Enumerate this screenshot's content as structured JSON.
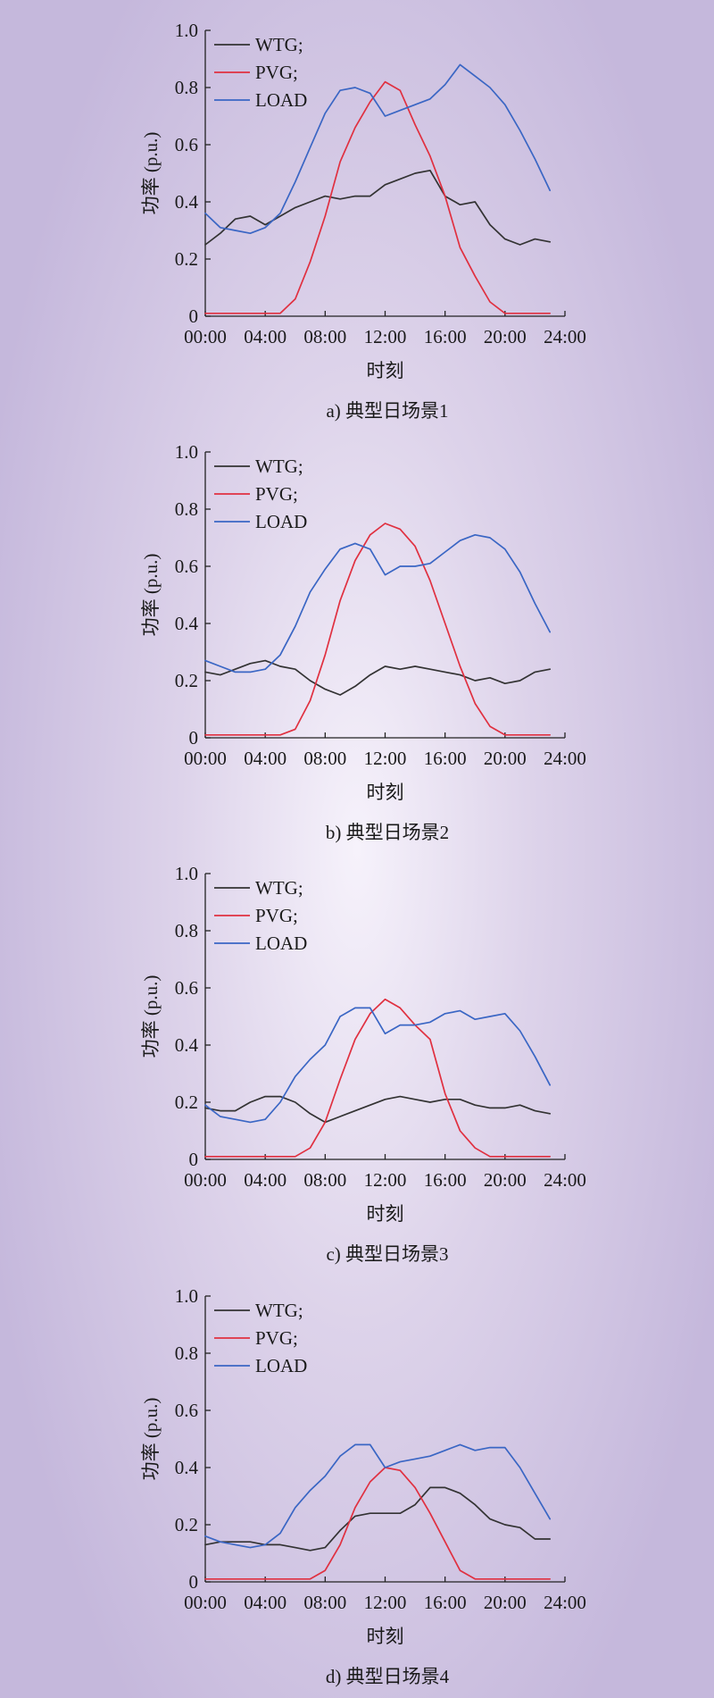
{
  "chart_data": [
    {
      "type": "line",
      "caption": "a) 典型日场景1",
      "xlabel": "时刻",
      "ylabel": "功率 (p.u.)",
      "ylim": [
        0,
        1.0
      ],
      "xlim": [
        0,
        24
      ],
      "x_ticks": [
        "00:00",
        "04:00",
        "08:00",
        "12:00",
        "16:00",
        "20:00",
        "24:00"
      ],
      "y_ticks": [
        "0",
        "0.2",
        "0.4",
        "0.6",
        "0.8",
        "1.0"
      ],
      "grid": false,
      "legend_position": "top-left",
      "x": [
        0,
        1,
        2,
        3,
        4,
        5,
        6,
        7,
        8,
        9,
        10,
        11,
        12,
        13,
        14,
        15,
        16,
        17,
        18,
        19,
        20,
        21,
        22,
        23
      ],
      "series": [
        {
          "name": "WTG;",
          "color": "#333333",
          "values": [
            0.25,
            0.29,
            0.34,
            0.35,
            0.32,
            0.35,
            0.38,
            0.4,
            0.42,
            0.41,
            0.42,
            0.42,
            0.46,
            0.48,
            0.5,
            0.51,
            0.42,
            0.39,
            0.4,
            0.32,
            0.27,
            0.25,
            0.27,
            0.26
          ]
        },
        {
          "name": "PVG;",
          "color": "#e03040",
          "values": [
            0.01,
            0.01,
            0.01,
            0.01,
            0.01,
            0.01,
            0.06,
            0.19,
            0.35,
            0.54,
            0.66,
            0.75,
            0.82,
            0.79,
            0.67,
            0.56,
            0.42,
            0.24,
            0.14,
            0.05,
            0.01,
            0.01,
            0.01,
            0.01
          ]
        },
        {
          "name": "LOAD",
          "color": "#3a66c4",
          "values": [
            0.36,
            0.31,
            0.3,
            0.29,
            0.31,
            0.36,
            0.47,
            0.59,
            0.71,
            0.79,
            0.8,
            0.78,
            0.7,
            0.72,
            0.74,
            0.76,
            0.81,
            0.88,
            0.84,
            0.8,
            0.74,
            0.65,
            0.55,
            0.44
          ]
        }
      ]
    },
    {
      "type": "line",
      "caption": "b) 典型日场景2",
      "xlabel": "时刻",
      "ylabel": "功率 (p.u.)",
      "ylim": [
        0,
        1.0
      ],
      "xlim": [
        0,
        24
      ],
      "x_ticks": [
        "00:00",
        "04:00",
        "08:00",
        "12:00",
        "16:00",
        "20:00",
        "24:00"
      ],
      "y_ticks": [
        "0",
        "0.2",
        "0.4",
        "0.6",
        "0.8",
        "1.0"
      ],
      "grid": false,
      "legend_position": "top-left",
      "x": [
        0,
        1,
        2,
        3,
        4,
        5,
        6,
        7,
        8,
        9,
        10,
        11,
        12,
        13,
        14,
        15,
        16,
        17,
        18,
        19,
        20,
        21,
        22,
        23
      ],
      "series": [
        {
          "name": "WTG;",
          "color": "#333333",
          "values": [
            0.23,
            0.22,
            0.24,
            0.26,
            0.27,
            0.25,
            0.24,
            0.2,
            0.17,
            0.15,
            0.18,
            0.22,
            0.25,
            0.24,
            0.25,
            0.24,
            0.23,
            0.22,
            0.2,
            0.21,
            0.19,
            0.2,
            0.23,
            0.24
          ]
        },
        {
          "name": "PVG;",
          "color": "#e03040",
          "values": [
            0.01,
            0.01,
            0.01,
            0.01,
            0.01,
            0.01,
            0.03,
            0.13,
            0.29,
            0.48,
            0.62,
            0.71,
            0.75,
            0.73,
            0.67,
            0.55,
            0.4,
            0.25,
            0.12,
            0.04,
            0.01,
            0.01,
            0.01,
            0.01
          ]
        },
        {
          "name": "LOAD",
          "color": "#3a66c4",
          "values": [
            0.27,
            0.25,
            0.23,
            0.23,
            0.24,
            0.29,
            0.39,
            0.51,
            0.59,
            0.66,
            0.68,
            0.66,
            0.57,
            0.6,
            0.6,
            0.61,
            0.65,
            0.69,
            0.71,
            0.7,
            0.66,
            0.58,
            0.47,
            0.37
          ]
        }
      ]
    },
    {
      "type": "line",
      "caption": "c) 典型日场景3",
      "xlabel": "时刻",
      "ylabel": "功率 (p.u.)",
      "ylim": [
        0,
        1.0
      ],
      "xlim": [
        0,
        24
      ],
      "x_ticks": [
        "00:00",
        "04:00",
        "08:00",
        "12:00",
        "16:00",
        "20:00",
        "24:00"
      ],
      "y_ticks": [
        "0",
        "0.2",
        "0.4",
        "0.6",
        "0.8",
        "1.0"
      ],
      "grid": false,
      "legend_position": "top-left",
      "x": [
        0,
        1,
        2,
        3,
        4,
        5,
        6,
        7,
        8,
        9,
        10,
        11,
        12,
        13,
        14,
        15,
        16,
        17,
        18,
        19,
        20,
        21,
        22,
        23
      ],
      "series": [
        {
          "name": "WTG;",
          "color": "#333333",
          "values": [
            0.18,
            0.17,
            0.17,
            0.2,
            0.22,
            0.22,
            0.2,
            0.16,
            0.13,
            0.15,
            0.17,
            0.19,
            0.21,
            0.22,
            0.21,
            0.2,
            0.21,
            0.21,
            0.19,
            0.18,
            0.18,
            0.19,
            0.17,
            0.16
          ]
        },
        {
          "name": "PVG;",
          "color": "#e03040",
          "values": [
            0.01,
            0.01,
            0.01,
            0.01,
            0.01,
            0.01,
            0.01,
            0.04,
            0.13,
            0.28,
            0.42,
            0.51,
            0.56,
            0.53,
            0.47,
            0.42,
            0.23,
            0.1,
            0.04,
            0.01,
            0.01,
            0.01,
            0.01,
            0.01
          ]
        },
        {
          "name": "LOAD",
          "color": "#3a66c4",
          "values": [
            0.19,
            0.15,
            0.14,
            0.13,
            0.14,
            0.2,
            0.29,
            0.35,
            0.4,
            0.5,
            0.53,
            0.53,
            0.44,
            0.47,
            0.47,
            0.48,
            0.51,
            0.52,
            0.49,
            0.5,
            0.51,
            0.45,
            0.36,
            0.26
          ]
        }
      ]
    },
    {
      "type": "line",
      "caption": "d) 典型日场景4",
      "xlabel": "时刻",
      "ylabel": "功率 (p.u.)",
      "ylim": [
        0,
        1.0
      ],
      "xlim": [
        0,
        24
      ],
      "x_ticks": [
        "00:00",
        "04:00",
        "08:00",
        "12:00",
        "16:00",
        "20:00",
        "24:00"
      ],
      "y_ticks": [
        "0",
        "0.2",
        "0.4",
        "0.6",
        "0.8",
        "1.0"
      ],
      "grid": false,
      "legend_position": "top-left",
      "x": [
        0,
        1,
        2,
        3,
        4,
        5,
        6,
        7,
        8,
        9,
        10,
        11,
        12,
        13,
        14,
        15,
        16,
        17,
        18,
        19,
        20,
        21,
        22,
        23
      ],
      "series": [
        {
          "name": "WTG;",
          "color": "#333333",
          "values": [
            0.13,
            0.14,
            0.14,
            0.14,
            0.13,
            0.13,
            0.12,
            0.11,
            0.12,
            0.18,
            0.23,
            0.24,
            0.24,
            0.24,
            0.27,
            0.33,
            0.33,
            0.31,
            0.27,
            0.22,
            0.2,
            0.19,
            0.15,
            0.15
          ]
        },
        {
          "name": "PVG;",
          "color": "#e03040",
          "values": [
            0.01,
            0.01,
            0.01,
            0.01,
            0.01,
            0.01,
            0.01,
            0.01,
            0.04,
            0.13,
            0.26,
            0.35,
            0.4,
            0.39,
            0.33,
            0.24,
            0.14,
            0.04,
            0.01,
            0.01,
            0.01,
            0.01,
            0.01,
            0.01
          ]
        },
        {
          "name": "LOAD",
          "color": "#3a66c4",
          "values": [
            0.16,
            0.14,
            0.13,
            0.12,
            0.13,
            0.17,
            0.26,
            0.32,
            0.37,
            0.44,
            0.48,
            0.48,
            0.4,
            0.42,
            0.43,
            0.44,
            0.46,
            0.48,
            0.46,
            0.47,
            0.47,
            0.4,
            0.31,
            0.22
          ]
        }
      ]
    }
  ]
}
